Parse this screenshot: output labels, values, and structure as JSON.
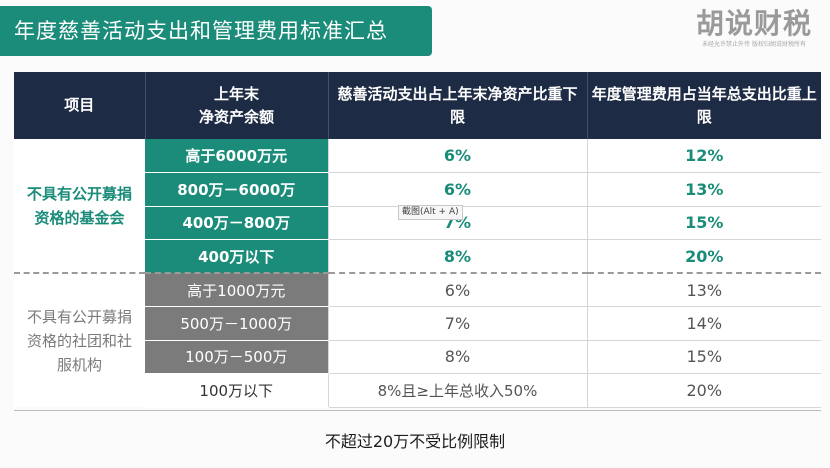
{
  "title": "年度慈善活动支出和管理费用标准汇总",
  "logo": {
    "mark": "胡说财税",
    "sub": "未经允许禁止外传  版权归胡说财税所有"
  },
  "table": {
    "headers": [
      "项目",
      "上年末\n净资产余额",
      "慈善活动支出占上年末净资产比重下限",
      "年度管理费用占当年总支出比重上限"
    ],
    "groups": [
      {
        "label": "不具有公开募捐资格的基金会",
        "rows": [
          {
            "tier": "高于6000万元",
            "charity": "6%",
            "admin": "12%"
          },
          {
            "tier": "800万－6000万",
            "charity": "6%",
            "admin": "13%"
          },
          {
            "tier": "400万－800万",
            "charity": "7%",
            "admin": "15%"
          },
          {
            "tier": "400万以下",
            "charity": "8%",
            "admin": "20%"
          }
        ]
      },
      {
        "label": "不具有公开募捐资格的社团和社服机构",
        "rows": [
          {
            "tier": "高于1000万元",
            "charity": "6%",
            "admin": "13%"
          },
          {
            "tier": "500万－1000万",
            "charity": "7%",
            "admin": "14%"
          },
          {
            "tier": "100万－500万",
            "charity": "8%",
            "admin": "15%"
          },
          {
            "tier": "100万以下",
            "charity": "8%且≥上年总收入50%",
            "admin": "20%"
          }
        ]
      }
    ]
  },
  "footer_note": "不超过20万不受比例限制",
  "tooltip": "截图(Alt + A)",
  "colors": {
    "accent": "#1a8c79",
    "header_bg": "#1e2b44",
    "gray": "#7b7b7b"
  }
}
